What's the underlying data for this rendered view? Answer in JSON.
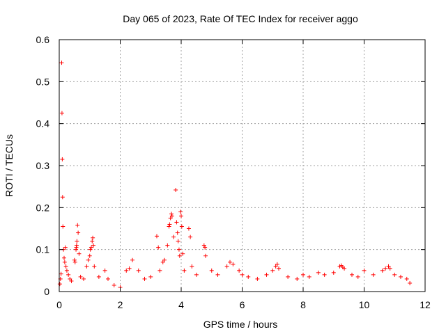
{
  "chart_data": {
    "type": "scatter",
    "title": "Day 065 of 2023, Rate Of TEC Index for receiver aggo",
    "xlabel": "GPS time / hours",
    "ylabel": "ROTI / TECUs",
    "xlim": [
      0,
      12
    ],
    "ylim": [
      0,
      0.6
    ],
    "x_ticks": [
      "0",
      "2",
      "4",
      "6",
      "8",
      "10",
      "12"
    ],
    "y_ticks": [
      "0",
      "0.1",
      "0.2",
      "0.3",
      "0.4",
      "0.5",
      "0.6"
    ],
    "grid": true,
    "legend": "none",
    "marker": "+",
    "series": [
      {
        "color": "#ff0000",
        "points": [
          [
            0.02,
            0.018
          ],
          [
            0.04,
            0.03
          ],
          [
            0.06,
            0.042
          ],
          [
            0.08,
            0.545
          ],
          [
            0.09,
            0.425
          ],
          [
            0.1,
            0.315
          ],
          [
            0.11,
            0.225
          ],
          [
            0.12,
            0.155
          ],
          [
            0.14,
            0.1
          ],
          [
            0.16,
            0.08
          ],
          [
            0.18,
            0.07
          ],
          [
            0.2,
            0.105
          ],
          [
            0.22,
            0.06
          ],
          [
            0.25,
            0.05
          ],
          [
            0.3,
            0.04
          ],
          [
            0.35,
            0.03
          ],
          [
            0.4,
            0.025
          ],
          [
            0.5,
            0.075
          ],
          [
            0.52,
            0.07
          ],
          [
            0.55,
            0.1
          ],
          [
            0.56,
            0.105
          ],
          [
            0.57,
            0.11
          ],
          [
            0.58,
            0.12
          ],
          [
            0.6,
            0.158
          ],
          [
            0.62,
            0.14
          ],
          [
            0.65,
            0.09
          ],
          [
            0.7,
            0.035
          ],
          [
            0.8,
            0.03
          ],
          [
            0.9,
            0.06
          ],
          [
            0.95,
            0.075
          ],
          [
            1.0,
            0.085
          ],
          [
            1.02,
            0.1
          ],
          [
            1.05,
            0.105
          ],
          [
            1.08,
            0.12
          ],
          [
            1.1,
            0.128
          ],
          [
            1.12,
            0.11
          ],
          [
            1.15,
            0.06
          ],
          [
            1.3,
            0.035
          ],
          [
            1.5,
            0.05
          ],
          [
            1.6,
            0.03
          ],
          [
            1.8,
            0.015
          ],
          [
            2.0,
            0.01
          ],
          [
            2.2,
            0.05
          ],
          [
            2.3,
            0.055
          ],
          [
            2.4,
            0.075
          ],
          [
            2.6,
            0.05
          ],
          [
            2.8,
            0.03
          ],
          [
            3.0,
            0.035
          ],
          [
            3.2,
            0.132
          ],
          [
            3.25,
            0.105
          ],
          [
            3.3,
            0.05
          ],
          [
            3.4,
            0.07
          ],
          [
            3.45,
            0.075
          ],
          [
            3.55,
            0.11
          ],
          [
            3.6,
            0.155
          ],
          [
            3.62,
            0.16
          ],
          [
            3.65,
            0.175
          ],
          [
            3.68,
            0.185
          ],
          [
            3.7,
            0.18
          ],
          [
            3.75,
            0.13
          ],
          [
            3.82,
            0.242
          ],
          [
            3.85,
            0.165
          ],
          [
            3.88,
            0.14
          ],
          [
            3.9,
            0.12
          ],
          [
            3.93,
            0.1
          ],
          [
            3.95,
            0.085
          ],
          [
            3.98,
            0.19
          ],
          [
            4.0,
            0.18
          ],
          [
            4.02,
            0.155
          ],
          [
            4.05,
            0.09
          ],
          [
            4.1,
            0.05
          ],
          [
            4.25,
            0.15
          ],
          [
            4.3,
            0.13
          ],
          [
            4.35,
            0.06
          ],
          [
            4.5,
            0.04
          ],
          [
            4.75,
            0.11
          ],
          [
            4.78,
            0.105
          ],
          [
            4.8,
            0.085
          ],
          [
            5.0,
            0.05
          ],
          [
            5.2,
            0.04
          ],
          [
            5.5,
            0.06
          ],
          [
            5.6,
            0.07
          ],
          [
            5.7,
            0.065
          ],
          [
            5.9,
            0.05
          ],
          [
            6.0,
            0.04
          ],
          [
            6.2,
            0.035
          ],
          [
            6.5,
            0.03
          ],
          [
            6.8,
            0.04
          ],
          [
            7.0,
            0.05
          ],
          [
            7.1,
            0.06
          ],
          [
            7.15,
            0.065
          ],
          [
            7.2,
            0.055
          ],
          [
            7.5,
            0.035
          ],
          [
            7.8,
            0.03
          ],
          [
            8.0,
            0.04
          ],
          [
            8.2,
            0.035
          ],
          [
            8.5,
            0.045
          ],
          [
            8.7,
            0.04
          ],
          [
            9.0,
            0.045
          ],
          [
            9.2,
            0.06
          ],
          [
            9.25,
            0.062
          ],
          [
            9.3,
            0.058
          ],
          [
            9.35,
            0.055
          ],
          [
            9.6,
            0.04
          ],
          [
            9.8,
            0.035
          ],
          [
            10.0,
            0.05
          ],
          [
            10.3,
            0.04
          ],
          [
            10.6,
            0.05
          ],
          [
            10.7,
            0.055
          ],
          [
            10.8,
            0.06
          ],
          [
            10.85,
            0.055
          ],
          [
            11.0,
            0.04
          ],
          [
            11.2,
            0.035
          ],
          [
            11.4,
            0.03
          ],
          [
            11.5,
            0.02
          ]
        ]
      }
    ]
  }
}
